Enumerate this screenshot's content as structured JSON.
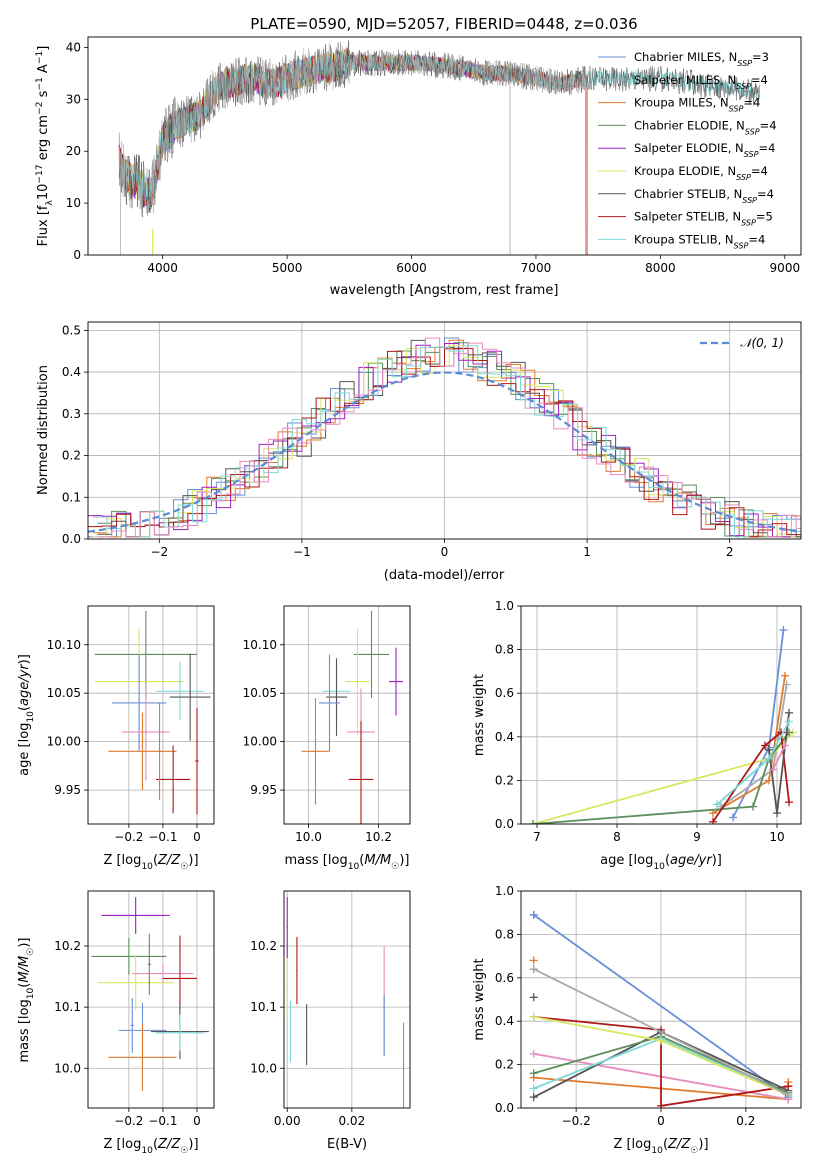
{
  "figure": {
    "title": "PLATE=0590, MJD=52057, FIBERID=0448, z=0.036"
  },
  "colors": {
    "models": [
      "#6a8fd8",
      "#a9a9a9",
      "#e07a2e",
      "#5d8f5d",
      "#a020c0",
      "#d8e860",
      "#555555",
      "#b01818",
      "#7fd8d8"
    ],
    "pink": "#e88cc0",
    "grid": "#b0b0b0"
  },
  "chart_data": [
    {
      "type": "line",
      "panel": "spectrum",
      "xlabel": "wavelength [Angstrom, rest frame]",
      "ylabel": "Flux [f_λ10^-17 erg cm^-2 s^-1 A^-1]",
      "xlim": [
        3400,
        9130
      ],
      "ylim": [
        0,
        42
      ],
      "xticks": [
        4000,
        5000,
        6000,
        7000,
        8000,
        9000
      ],
      "yticks": [
        0,
        10,
        20,
        30,
        40
      ],
      "grid": false,
      "legend_position": "top-right",
      "continuum": {
        "x": [
          3650,
          3700,
          3800,
          3900,
          3950,
          4000,
          4100,
          4200,
          4300,
          4400,
          4500,
          4700,
          4900,
          5100,
          5300,
          5500,
          5800,
          6100,
          6400,
          6600,
          6800,
          7000,
          7200,
          7400,
          7500,
          7700,
          8000,
          8300,
          8600,
          8800
        ],
        "y": [
          18,
          15,
          14,
          11,
          16,
          22,
          25,
          26,
          27,
          31,
          33,
          34,
          33,
          35,
          36,
          37,
          37,
          37,
          36,
          35,
          35,
          34,
          33,
          34,
          34,
          34,
          34,
          33,
          32,
          31
        ]
      },
      "series": [
        {
          "name": "Chabrier MILES, N_SSP=3",
          "x_end": 7400
        },
        {
          "name": "Salpeter MILES, N_SSP=4",
          "x_end": 7400
        },
        {
          "name": "Kroupa MILES, N_SSP=4",
          "x_end": 7410
        },
        {
          "name": "Chabrier ELODIE, N_SSP=4",
          "x_end": 6790
        },
        {
          "name": "Salpeter ELODIE, N_SSP=4",
          "x_end": 6790
        },
        {
          "name": "Kroupa ELODIE, N_SSP=4",
          "x_end": 6790
        },
        {
          "name": "Chabrier STELIB, N_SSP=4",
          "x_end": 8800
        },
        {
          "name": "Salpeter STELIB, N_SSP=5",
          "x_end": 7410
        },
        {
          "name": "Kroupa STELIB, N_SSP=4",
          "x_end": 8800
        }
      ]
    },
    {
      "type": "histogram",
      "panel": "residuals",
      "xlabel": "(data-model)/error",
      "ylabel": "Normed distribution",
      "xlim": [
        -2.5,
        2.5
      ],
      "ylim": [
        0,
        0.52
      ],
      "xticks": [
        -2,
        -1,
        0,
        1,
        2
      ],
      "yticks": [
        0.0,
        0.1,
        0.2,
        0.3,
        0.4,
        0.5
      ],
      "grid": true,
      "legend_position": "top-right",
      "reference_curve": {
        "name": "𝒩(0, 1)",
        "mean": 0,
        "sigma": 1
      },
      "bin_width": 0.1,
      "envelope_peak": 0.44,
      "envelope_sigma": 0.95
    },
    {
      "type": "scatter",
      "panel": "Z-age",
      "xlabel": "Z [log10(Z/Z☉)]",
      "ylabel": "age  [log10(age/yr)]",
      "xlim": [
        -0.32,
        0.05
      ],
      "ylim": [
        9.915,
        10.14
      ],
      "xticks": [
        -0.2,
        -0.1,
        0.0
      ],
      "yticks": [
        9.95,
        10.0,
        10.05,
        10.1
      ],
      "grid": true,
      "points": [
        {
          "x": -0.15,
          "y": 10.09,
          "dx": 0.15,
          "dy": 0.045,
          "color": "#5d8f5d"
        },
        {
          "x": -0.17,
          "y": 10.062,
          "dx": 0.13,
          "dy": 0.055,
          "color": "#d8e860"
        },
        {
          "x": -0.05,
          "y": 10.052,
          "dx": 0.07,
          "dy": 0.03,
          "color": "#7fd8d8"
        },
        {
          "x": -0.02,
          "y": 10.046,
          "dx": 0.06,
          "dy": 0.045,
          "color": "#555555"
        },
        {
          "x": -0.17,
          "y": 10.04,
          "dx": 0.08,
          "dy": 0.05,
          "color": "#6a8fd8"
        },
        {
          "x": -0.15,
          "y": 10.01,
          "dx": 0.07,
          "dy": 0.05,
          "color": "#e88cc0"
        },
        {
          "x": -0.16,
          "y": 9.99,
          "dx": 0.1,
          "dy": 0.04,
          "color": "#e07a2e"
        },
        {
          "x": -0.07,
          "y": 9.961,
          "dx": 0.05,
          "dy": 0.035,
          "color": "#b01818"
        },
        {
          "x": 0.0,
          "y": 9.98,
          "dx": 0.005,
          "dy": 0.055,
          "color": "#b01818"
        },
        {
          "x": -0.11,
          "y": 9.99,
          "dx": 0.004,
          "dy": 0.05,
          "color": "#e07a2e"
        }
      ]
    },
    {
      "type": "scatter",
      "panel": "mass-age",
      "xlabel": "mass [log10(M/M☉)]",
      "ylabel": "",
      "xlim": [
        9.93,
        10.29
      ],
      "ylim": [
        9.915,
        10.14
      ],
      "xticks": [
        10.0,
        10.2
      ],
      "yticks": [
        9.95,
        10.0,
        10.05,
        10.1
      ],
      "grid": true,
      "points": [
        {
          "x": 10.18,
          "y": 10.09,
          "dx": 0.05,
          "dy": 0.045,
          "color": "#5d8f5d"
        },
        {
          "x": 10.14,
          "y": 10.062,
          "dx": 0.035,
          "dy": 0.055,
          "color": "#d8e860"
        },
        {
          "x": 10.25,
          "y": 10.062,
          "dx": 0.02,
          "dy": 0.035,
          "color": "#a020c0"
        },
        {
          "x": 10.08,
          "y": 10.052,
          "dx": 0.04,
          "dy": 0.03,
          "color": "#7fd8d8"
        },
        {
          "x": 10.08,
          "y": 10.046,
          "dx": 0.03,
          "dy": 0.04,
          "color": "#555555"
        },
        {
          "x": 10.06,
          "y": 10.04,
          "dx": 0.03,
          "dy": 0.05,
          "color": "#6a8fd8"
        },
        {
          "x": 10.15,
          "y": 10.01,
          "dx": 0.04,
          "dy": 0.045,
          "color": "#e88cc0"
        },
        {
          "x": 10.02,
          "y": 9.99,
          "dx": 0.04,
          "dy": 0.055,
          "color": "#e07a2e"
        },
        {
          "x": 10.15,
          "y": 9.961,
          "dx": 0.035,
          "dy": 0.06,
          "color": "#b01818"
        }
      ]
    },
    {
      "type": "line",
      "panel": "age-massweight",
      "xlabel": "age  [log10(age/yr)]",
      "ylabel": "mass weight",
      "xlim": [
        6.8,
        10.3
      ],
      "ylim": [
        0,
        1.0
      ],
      "xticks": [
        7,
        8,
        9,
        10
      ],
      "yticks": [
        0.0,
        0.2,
        0.4,
        0.6,
        0.8,
        1.0
      ],
      "grid": true,
      "series": [
        {
          "color": "#6a8fd8",
          "x": [
            9.45,
            9.9,
            10.08
          ],
          "y": [
            0.03,
            0.35,
            0.89
          ]
        },
        {
          "color": "#e07a2e",
          "x": [
            9.2,
            9.9,
            10.1
          ],
          "y": [
            0.05,
            0.2,
            0.68
          ]
        },
        {
          "color": "#a9a9a9",
          "x": [
            9.3,
            9.95,
            10.12
          ],
          "y": [
            0.08,
            0.25,
            0.64
          ]
        },
        {
          "color": "#d8e860",
          "x": [
            6.95,
            9.9,
            10.2
          ],
          "y": [
            0.0,
            0.3,
            0.42
          ]
        },
        {
          "color": "#5d8f5d",
          "x": [
            6.95,
            9.7,
            9.9,
            10.15
          ],
          "y": [
            0.0,
            0.08,
            0.3,
            0.42
          ]
        },
        {
          "color": "#b01818",
          "x": [
            9.2,
            9.85,
            10.05,
            10.15
          ],
          "y": [
            0.01,
            0.36,
            0.42,
            0.1
          ]
        },
        {
          "color": "#555555",
          "x": [
            9.9,
            10.0,
            10.15
          ],
          "y": [
            0.34,
            0.05,
            0.51
          ]
        },
        {
          "color": "#7fd8d8",
          "x": [
            9.25,
            9.9,
            10.15
          ],
          "y": [
            0.09,
            0.3,
            0.47
          ]
        },
        {
          "color": "#e88cc0",
          "x": [
            9.95,
            10.1
          ],
          "y": [
            0.25,
            0.36
          ]
        }
      ]
    },
    {
      "type": "scatter",
      "panel": "Z-mass",
      "xlabel": "Z [log10(Z/Z☉)]",
      "ylabel": "mass [log10(M/M☉)]",
      "xlim": [
        -0.32,
        0.05
      ],
      "ylim": [
        9.935,
        10.29
      ],
      "xticks": [
        -0.2,
        -0.1,
        0.0
      ],
      "yticks": [
        10.0,
        10.1,
        10.2
      ],
      "grid": true,
      "points": [
        {
          "x": -0.18,
          "y": 10.25,
          "dx": 0.1,
          "dy": 0.03,
          "color": "#a020c0"
        },
        {
          "x": -0.2,
          "y": 10.183,
          "dx": 0.11,
          "dy": 0.03,
          "color": "#5d8f5d"
        },
        {
          "x": -0.1,
          "y": 10.155,
          "dx": 0.09,
          "dy": 0.015,
          "color": "#e88cc0"
        },
        {
          "x": -0.05,
          "y": 10.147,
          "dx": 0.05,
          "dy": 0.07,
          "color": "#b01818"
        },
        {
          "x": -0.18,
          "y": 10.14,
          "dx": 0.11,
          "dy": 0.045,
          "color": "#d8e860"
        },
        {
          "x": -0.16,
          "y": 10.062,
          "dx": 0.07,
          "dy": 0.045,
          "color": "#6a8fd8"
        },
        {
          "x": -0.05,
          "y": 10.06,
          "dx": 0.085,
          "dy": 0.045,
          "color": "#555555"
        },
        {
          "x": -0.05,
          "y": 10.058,
          "dx": 0.07,
          "dy": 0.03,
          "color": "#7fd8d8"
        },
        {
          "x": -0.16,
          "y": 10.018,
          "dx": 0.1,
          "dy": 0.055,
          "color": "#e07a2e"
        },
        {
          "x": -0.14,
          "y": 10.17,
          "dx": 0.005,
          "dy": 0.05,
          "color": "#5d8f5d"
        },
        {
          "x": -0.19,
          "y": 10.07,
          "dx": 0.005,
          "dy": 0.045,
          "color": "#6a8fd8"
        }
      ]
    },
    {
      "type": "scatter",
      "panel": "EBV-mass",
      "xlabel": "E(B-V)",
      "ylabel": "",
      "xlim": [
        -0.001,
        0.038
      ],
      "ylim": [
        9.935,
        10.29
      ],
      "xticks": [
        0.0,
        0.02
      ],
      "yticks": [
        10.0,
        10.1,
        10.2
      ],
      "grid": true,
      "points": [
        {
          "x": 0.0,
          "y": 10.23,
          "dx": 0.0002,
          "dy": 0.05,
          "color": "#a020c0"
        },
        {
          "x": 0.0,
          "y": 10.13,
          "dx": 0.0002,
          "dy": 0.05,
          "color": "#d8e860"
        },
        {
          "x": 0.001,
          "y": 10.06,
          "dx": 0.0002,
          "dy": 0.05,
          "color": "#7fd8d8"
        },
        {
          "x": 0.003,
          "y": 10.16,
          "dx": 0.0002,
          "dy": 0.055,
          "color": "#b01818"
        },
        {
          "x": 0.006,
          "y": 10.055,
          "dx": 0.0002,
          "dy": 0.05,
          "color": "#555555"
        },
        {
          "x": 0.03,
          "y": 10.11,
          "dx": 0.0002,
          "dy": 0.09,
          "color": "#e88cc0"
        },
        {
          "x": 0.03,
          "y": 10.07,
          "dx": 0.0002,
          "dy": 0.05,
          "color": "#6a8fd8"
        },
        {
          "x": 0.036,
          "y": 10.005,
          "dx": 0.0002,
          "dy": 0.07,
          "color": "#e07a2e"
        }
      ]
    },
    {
      "type": "line",
      "panel": "Z-massweight",
      "xlabel": "Z [log10(Z/Z☉)]",
      "ylabel": "mass weight",
      "xlim": [
        -0.33,
        0.33
      ],
      "ylim": [
        0,
        1.0
      ],
      "xticks": [
        -0.2,
        0.0,
        0.2
      ],
      "yticks": [
        0.0,
        0.2,
        0.4,
        0.6,
        0.8,
        1.0
      ],
      "grid": true,
      "series": [
        {
          "color": "#6a8fd8",
          "x": [
            -0.3,
            0.3
          ],
          "y": [
            0.89,
            0.05
          ]
        },
        {
          "color": "#e07a2e",
          "x": [
            -0.3,
            0.0,
            0.3
          ],
          "y": [
            0.14,
            0.09,
            0.04
          ]
        },
        {
          "color": "#e88cc0",
          "x": [
            -0.3,
            0.3
          ],
          "y": [
            0.25,
            0.04
          ]
        },
        {
          "color": "#b01818",
          "x": [
            -0.3,
            0.0,
            0.0,
            0.3
          ],
          "y": [
            0.42,
            0.36,
            0.01,
            0.1
          ]
        },
        {
          "color": "#555555",
          "x": [
            -0.3,
            0.0,
            0.3
          ],
          "y": [
            0.05,
            0.35,
            0.08
          ]
        },
        {
          "color": "#5d8f5d",
          "x": [
            -0.3,
            0.0,
            0.3
          ],
          "y": [
            0.16,
            0.33,
            0.07
          ]
        },
        {
          "color": "#7fd8d8",
          "x": [
            -0.3,
            0.0,
            0.3
          ],
          "y": [
            0.09,
            0.32,
            0.06
          ]
        },
        {
          "color": "#d8e860",
          "x": [
            -0.3,
            0.0,
            0.3
          ],
          "y": [
            0.42,
            0.31,
            0.06
          ]
        },
        {
          "color": "#a9a9a9",
          "x": [
            -0.3,
            0.3
          ],
          "y": [
            0.64,
            0.06
          ]
        }
      ],
      "markers": [
        {
          "x": -0.3,
          "y": 0.89,
          "color": "#6a8fd8"
        },
        {
          "x": -0.3,
          "y": 0.68,
          "color": "#e07a2e"
        },
        {
          "x": -0.3,
          "y": 0.64,
          "color": "#a9a9a9"
        },
        {
          "x": -0.3,
          "y": 0.51,
          "color": "#555555"
        },
        {
          "x": 0.3,
          "y": 0.12,
          "color": "#e07a2e"
        },
        {
          "x": 0.3,
          "y": 0.1,
          "color": "#b01818"
        }
      ]
    }
  ]
}
